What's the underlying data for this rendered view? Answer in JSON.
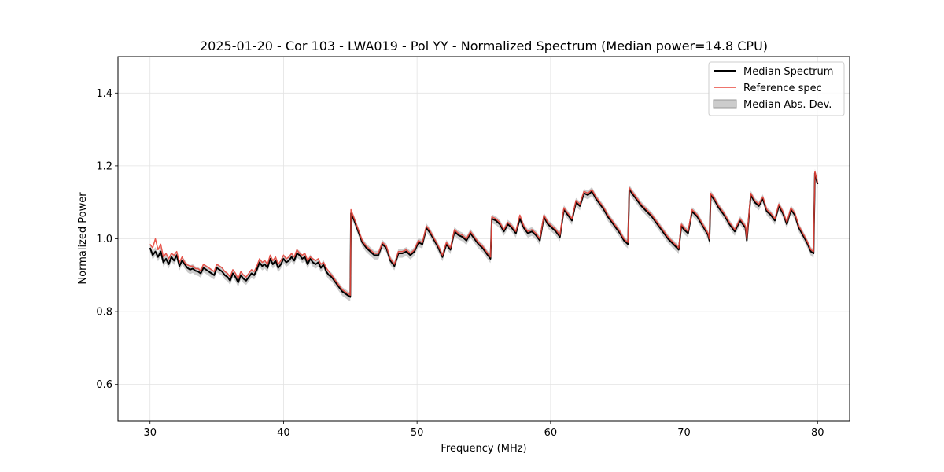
{
  "chart_data": {
    "type": "line",
    "title": "2025-01-20 - Cor 103 - LWA019 - Pol YY - Normalized Spectrum (Median power=14.8 CPU)",
    "xlabel": "Frequency (MHz)",
    "ylabel": "Normalized Power",
    "xlim": [
      27.6,
      82.4
    ],
    "ylim": [
      0.5,
      1.5
    ],
    "xticks": [
      30,
      40,
      50,
      60,
      70,
      80
    ],
    "yticks": [
      0.6,
      0.8,
      1.0,
      1.2,
      1.4
    ],
    "xtick_labels": [
      "30",
      "40",
      "50",
      "60",
      "70",
      "80"
    ],
    "ytick_labels": [
      "0.6",
      "0.8",
      "1.0",
      "1.2",
      "1.4"
    ],
    "grid": true,
    "legend_position": "top-right",
    "series": [
      {
        "name": "Median Spectrum",
        "color": "#000000",
        "x": [
          30.0,
          30.2,
          30.4,
          30.6,
          30.8,
          31.0,
          31.2,
          31.4,
          31.6,
          31.8,
          32.0,
          32.2,
          32.4,
          32.6,
          32.8,
          33.0,
          33.2,
          33.4,
          33.6,
          33.8,
          34.0,
          34.2,
          34.4,
          34.6,
          34.8,
          35.0,
          35.2,
          35.4,
          35.6,
          35.8,
          36.0,
          36.2,
          36.4,
          36.6,
          36.8,
          37.0,
          37.2,
          37.4,
          37.6,
          37.8,
          38.0,
          38.2,
          38.4,
          38.6,
          38.8,
          39.0,
          39.2,
          39.4,
          39.6,
          39.8,
          40.0,
          40.2,
          40.4,
          40.6,
          40.8,
          41.0,
          41.2,
          41.4,
          41.6,
          41.8,
          42.0,
          42.2,
          42.4,
          42.6,
          42.8,
          43.0,
          43.2,
          43.4,
          43.6,
          43.8,
          44.0,
          44.2,
          44.4,
          44.6,
          44.8,
          45.0,
          45.05,
          45.3,
          45.6,
          45.9,
          46.2,
          46.5,
          46.8,
          47.1,
          47.4,
          47.7,
          48.0,
          48.3,
          48.6,
          48.9,
          49.2,
          49.5,
          49.8,
          50.1,
          50.4,
          50.7,
          51.0,
          51.3,
          51.6,
          51.9,
          52.2,
          52.5,
          52.8,
          53.1,
          53.4,
          53.7,
          54.0,
          54.3,
          54.6,
          54.9,
          55.2,
          55.5,
          55.6,
          55.9,
          56.2,
          56.5,
          56.8,
          57.1,
          57.4,
          57.7,
          58.0,
          58.3,
          58.6,
          58.9,
          59.2,
          59.5,
          59.8,
          60.1,
          60.4,
          60.7,
          61.0,
          61.3,
          61.6,
          61.9,
          62.2,
          62.5,
          62.8,
          63.1,
          63.4,
          63.7,
          64.0,
          64.3,
          64.6,
          64.9,
          65.2,
          65.5,
          65.8,
          65.9,
          66.0,
          66.4,
          66.8,
          67.2,
          67.6,
          68.0,
          68.4,
          68.8,
          69.2,
          69.6,
          69.8,
          70.0,
          70.3,
          70.6,
          71.0,
          71.4,
          71.8,
          71.9,
          72.0,
          72.3,
          72.6,
          73.0,
          73.4,
          73.8,
          74.2,
          74.6,
          74.7,
          75.0,
          75.3,
          75.6,
          75.9,
          76.2,
          76.5,
          76.8,
          77.1,
          77.4,
          77.7,
          78.0,
          78.3,
          78.6,
          78.9,
          79.2,
          79.5,
          79.7,
          79.8,
          80.0
        ],
        "values": [
          0.975,
          0.955,
          0.965,
          0.95,
          0.965,
          0.935,
          0.945,
          0.93,
          0.95,
          0.94,
          0.955,
          0.925,
          0.94,
          0.93,
          0.92,
          0.915,
          0.918,
          0.912,
          0.91,
          0.905,
          0.92,
          0.915,
          0.91,
          0.905,
          0.9,
          0.92,
          0.915,
          0.91,
          0.9,
          0.895,
          0.885,
          0.905,
          0.895,
          0.88,
          0.9,
          0.89,
          0.885,
          0.895,
          0.905,
          0.9,
          0.915,
          0.935,
          0.925,
          0.93,
          0.92,
          0.945,
          0.93,
          0.94,
          0.92,
          0.93,
          0.945,
          0.935,
          0.94,
          0.95,
          0.94,
          0.96,
          0.955,
          0.945,
          0.95,
          0.93,
          0.945,
          0.935,
          0.93,
          0.935,
          0.92,
          0.93,
          0.91,
          0.9,
          0.895,
          0.885,
          0.875,
          0.865,
          0.855,
          0.85,
          0.845,
          0.84,
          1.07,
          1.05,
          1.02,
          0.99,
          0.975,
          0.965,
          0.955,
          0.955,
          0.985,
          0.975,
          0.94,
          0.925,
          0.96,
          0.96,
          0.965,
          0.955,
          0.965,
          0.99,
          0.985,
          1.03,
          1.015,
          0.995,
          0.975,
          0.95,
          0.985,
          0.97,
          1.02,
          1.01,
          1.005,
          0.995,
          1.015,
          1.0,
          0.985,
          0.975,
          0.96,
          0.945,
          1.055,
          1.05,
          1.04,
          1.02,
          1.04,
          1.03,
          1.015,
          1.055,
          1.03,
          1.015,
          1.02,
          1.01,
          0.995,
          1.06,
          1.04,
          1.03,
          1.02,
          1.005,
          1.08,
          1.065,
          1.05,
          1.1,
          1.09,
          1.125,
          1.12,
          1.13,
          1.11,
          1.095,
          1.08,
          1.06,
          1.045,
          1.03,
          1.015,
          0.995,
          0.985,
          1.135,
          1.13,
          1.11,
          1.09,
          1.075,
          1.06,
          1.04,
          1.02,
          1.0,
          0.985,
          0.97,
          1.035,
          1.025,
          1.015,
          1.075,
          1.06,
          1.035,
          1.01,
          0.995,
          1.12,
          1.105,
          1.085,
          1.065,
          1.04,
          1.02,
          1.05,
          1.03,
          0.995,
          1.12,
          1.1,
          1.09,
          1.11,
          1.075,
          1.065,
          1.05,
          1.09,
          1.07,
          1.04,
          1.08,
          1.065,
          1.03,
          1.01,
          0.99,
          0.965,
          0.96,
          1.18,
          1.15
        ]
      },
      {
        "name": "Reference spec",
        "color": "#e8463c",
        "x": [
          30.0,
          30.2,
          30.4,
          30.6,
          30.8,
          31.0,
          31.2,
          31.4,
          31.6,
          31.8,
          32.0,
          32.2,
          32.4,
          32.6,
          32.8,
          33.0,
          33.2,
          33.4,
          33.6,
          33.8,
          34.0,
          34.2,
          34.4,
          34.6,
          34.8,
          35.0,
          35.2,
          35.4,
          35.6,
          35.8,
          36.0,
          36.2,
          36.4,
          36.6,
          36.8,
          37.0,
          37.2,
          37.4,
          37.6,
          37.8,
          38.0,
          38.2,
          38.4,
          38.6,
          38.8,
          39.0,
          39.2,
          39.4,
          39.6,
          39.8,
          40.0,
          40.2,
          40.4,
          40.6,
          40.8,
          41.0,
          41.2,
          41.4,
          41.6,
          41.8,
          42.0,
          42.2,
          42.4,
          42.6,
          42.8,
          43.0,
          43.2,
          43.4,
          43.6,
          43.8,
          44.0,
          44.2,
          44.4,
          44.6,
          44.8,
          45.0,
          45.05,
          45.3,
          45.6,
          45.9,
          46.2,
          46.5,
          46.8,
          47.1,
          47.4,
          47.7,
          48.0,
          48.3,
          48.6,
          48.9,
          49.2,
          49.5,
          49.8,
          50.1,
          50.4,
          50.7,
          51.0,
          51.3,
          51.6,
          51.9,
          52.2,
          52.5,
          52.8,
          53.1,
          53.4,
          53.7,
          54.0,
          54.3,
          54.6,
          54.9,
          55.2,
          55.5,
          55.6,
          55.9,
          56.2,
          56.5,
          56.8,
          57.1,
          57.4,
          57.7,
          58.0,
          58.3,
          58.6,
          58.9,
          59.2,
          59.5,
          59.8,
          60.1,
          60.4,
          60.7,
          61.0,
          61.3,
          61.6,
          61.9,
          62.2,
          62.5,
          62.8,
          63.1,
          63.4,
          63.7,
          64.0,
          64.3,
          64.6,
          64.9,
          65.2,
          65.5,
          65.8,
          65.9,
          66.0,
          66.4,
          66.8,
          67.2,
          67.6,
          68.0,
          68.4,
          68.8,
          69.2,
          69.6,
          69.8,
          70.0,
          70.3,
          70.6,
          71.0,
          71.4,
          71.8,
          71.9,
          72.0,
          72.3,
          72.6,
          73.0,
          73.4,
          73.8,
          74.2,
          74.6,
          74.7,
          75.0,
          75.3,
          75.6,
          75.9,
          76.2,
          76.5,
          76.8,
          77.1,
          77.4,
          77.7,
          78.0,
          78.3,
          78.6,
          78.9,
          79.2,
          79.5,
          79.7,
          79.8,
          80.0
        ],
        "values": [
          0.985,
          0.975,
          1.0,
          0.97,
          0.985,
          0.95,
          0.96,
          0.945,
          0.96,
          0.955,
          0.965,
          0.935,
          0.95,
          0.935,
          0.928,
          0.925,
          0.925,
          0.918,
          0.918,
          0.912,
          0.93,
          0.925,
          0.92,
          0.915,
          0.91,
          0.93,
          0.925,
          0.92,
          0.91,
          0.905,
          0.895,
          0.915,
          0.905,
          0.89,
          0.91,
          0.9,
          0.895,
          0.905,
          0.915,
          0.91,
          0.925,
          0.945,
          0.935,
          0.94,
          0.93,
          0.955,
          0.94,
          0.95,
          0.93,
          0.94,
          0.955,
          0.945,
          0.95,
          0.96,
          0.95,
          0.97,
          0.96,
          0.955,
          0.96,
          0.94,
          0.95,
          0.945,
          0.94,
          0.945,
          0.93,
          0.935,
          0.92,
          0.91,
          0.9,
          0.89,
          0.88,
          0.87,
          0.86,
          0.855,
          0.85,
          0.845,
          1.08,
          1.055,
          1.025,
          0.995,
          0.98,
          0.97,
          0.96,
          0.96,
          0.99,
          0.98,
          0.945,
          0.93,
          0.965,
          0.965,
          0.97,
          0.96,
          0.97,
          0.995,
          0.99,
          1.035,
          1.02,
          1.0,
          0.98,
          0.955,
          0.99,
          0.975,
          1.025,
          1.015,
          1.01,
          1.0,
          1.02,
          1.005,
          0.99,
          0.98,
          0.965,
          0.95,
          1.06,
          1.055,
          1.045,
          1.025,
          1.045,
          1.035,
          1.02,
          1.065,
          1.035,
          1.02,
          1.025,
          1.015,
          1.0,
          1.065,
          1.045,
          1.035,
          1.025,
          1.01,
          1.085,
          1.07,
          1.055,
          1.105,
          1.095,
          1.13,
          1.125,
          1.135,
          1.115,
          1.1,
          1.085,
          1.065,
          1.05,
          1.035,
          1.02,
          1.0,
          0.99,
          1.14,
          1.135,
          1.115,
          1.095,
          1.08,
          1.065,
          1.045,
          1.025,
          1.005,
          0.99,
          0.975,
          1.04,
          1.03,
          1.02,
          1.08,
          1.065,
          1.04,
          1.015,
          1.0,
          1.125,
          1.11,
          1.09,
          1.07,
          1.045,
          1.025,
          1.055,
          1.035,
          1.0,
          1.125,
          1.105,
          1.095,
          1.115,
          1.08,
          1.07,
          1.055,
          1.095,
          1.075,
          1.045,
          1.085,
          1.07,
          1.035,
          1.015,
          0.995,
          0.97,
          0.965,
          1.185,
          1.155
        ]
      }
    ],
    "band": {
      "name": "Median Abs. Dev.",
      "color": "#b0b0b0",
      "halfwidth": 0.012
    },
    "legend": [
      "Median Spectrum",
      "Reference spec",
      "Median Abs. Dev."
    ]
  }
}
